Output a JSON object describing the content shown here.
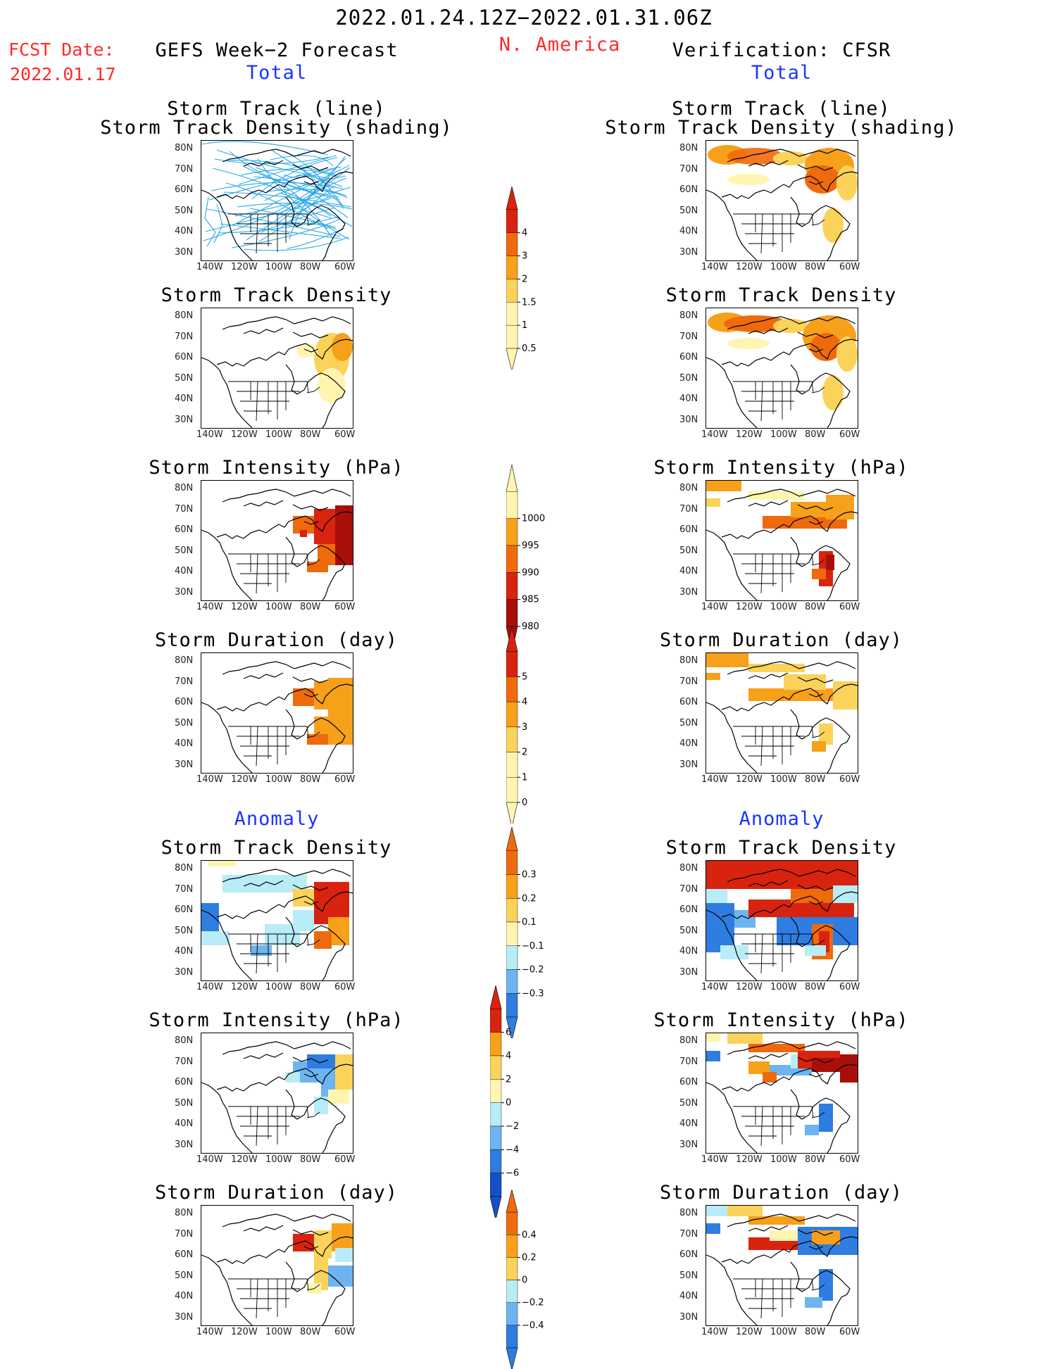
{
  "header": {
    "period": "2022.01.24.12Z−2022.01.31.06Z",
    "region": "N. America",
    "fcst_label": "FCST Date:",
    "fcst_date": "2022.01.17",
    "left_title": "GEFS Week−2 Forecast",
    "right_title": "Verification: CFSR",
    "total": "Total",
    "anomaly": "Anomaly"
  },
  "panel_titles": {
    "track_line": "Storm Track (line)",
    "track_shading": "Storm Track Density (shading)",
    "density": "Storm Track Density",
    "intensity": "Storm Intensity (hPa)",
    "duration": "Storm Duration (day)"
  },
  "axes": {
    "lat": [
      "80N",
      "70N",
      "60N",
      "50N",
      "40N",
      "30N"
    ],
    "lon": [
      "140W",
      "120W",
      "100W",
      "80W",
      "60W"
    ]
  },
  "colorbars": {
    "density_total": [
      "4",
      "3",
      "2",
      "1.5",
      "1",
      "0.5"
    ],
    "intensity_total": [
      "1000",
      "995",
      "990",
      "985",
      "980"
    ],
    "duration_total": [
      "5",
      "4",
      "3",
      "2",
      "1",
      "0"
    ],
    "density_anom": [
      "0.3",
      "0.2",
      "0.1",
      "−0.1",
      "−0.2",
      "−0.3"
    ],
    "intensity_anom": [
      "6",
      "4",
      "2",
      "0",
      "−2",
      "−4",
      "−6"
    ],
    "duration_anom": [
      "0.4",
      "0.2",
      "0",
      "−0.2",
      "−0.4"
    ]
  },
  "colors": {
    "title_red": "#ff2a2a",
    "title_blue": "#1a33ff",
    "light_yellow": "#fff5b0",
    "yellow": "#fbd35a",
    "orange": "#f7a01a",
    "dark_orange": "#ef6a0c",
    "red": "#d8230f",
    "dark_red": "#a80f0a",
    "light_blue": "#b8ecf6",
    "mid_blue": "#6db4f0",
    "blue": "#2f7de0",
    "dark_blue": "#1450c8",
    "track_line": "#2aa8e6"
  }
}
